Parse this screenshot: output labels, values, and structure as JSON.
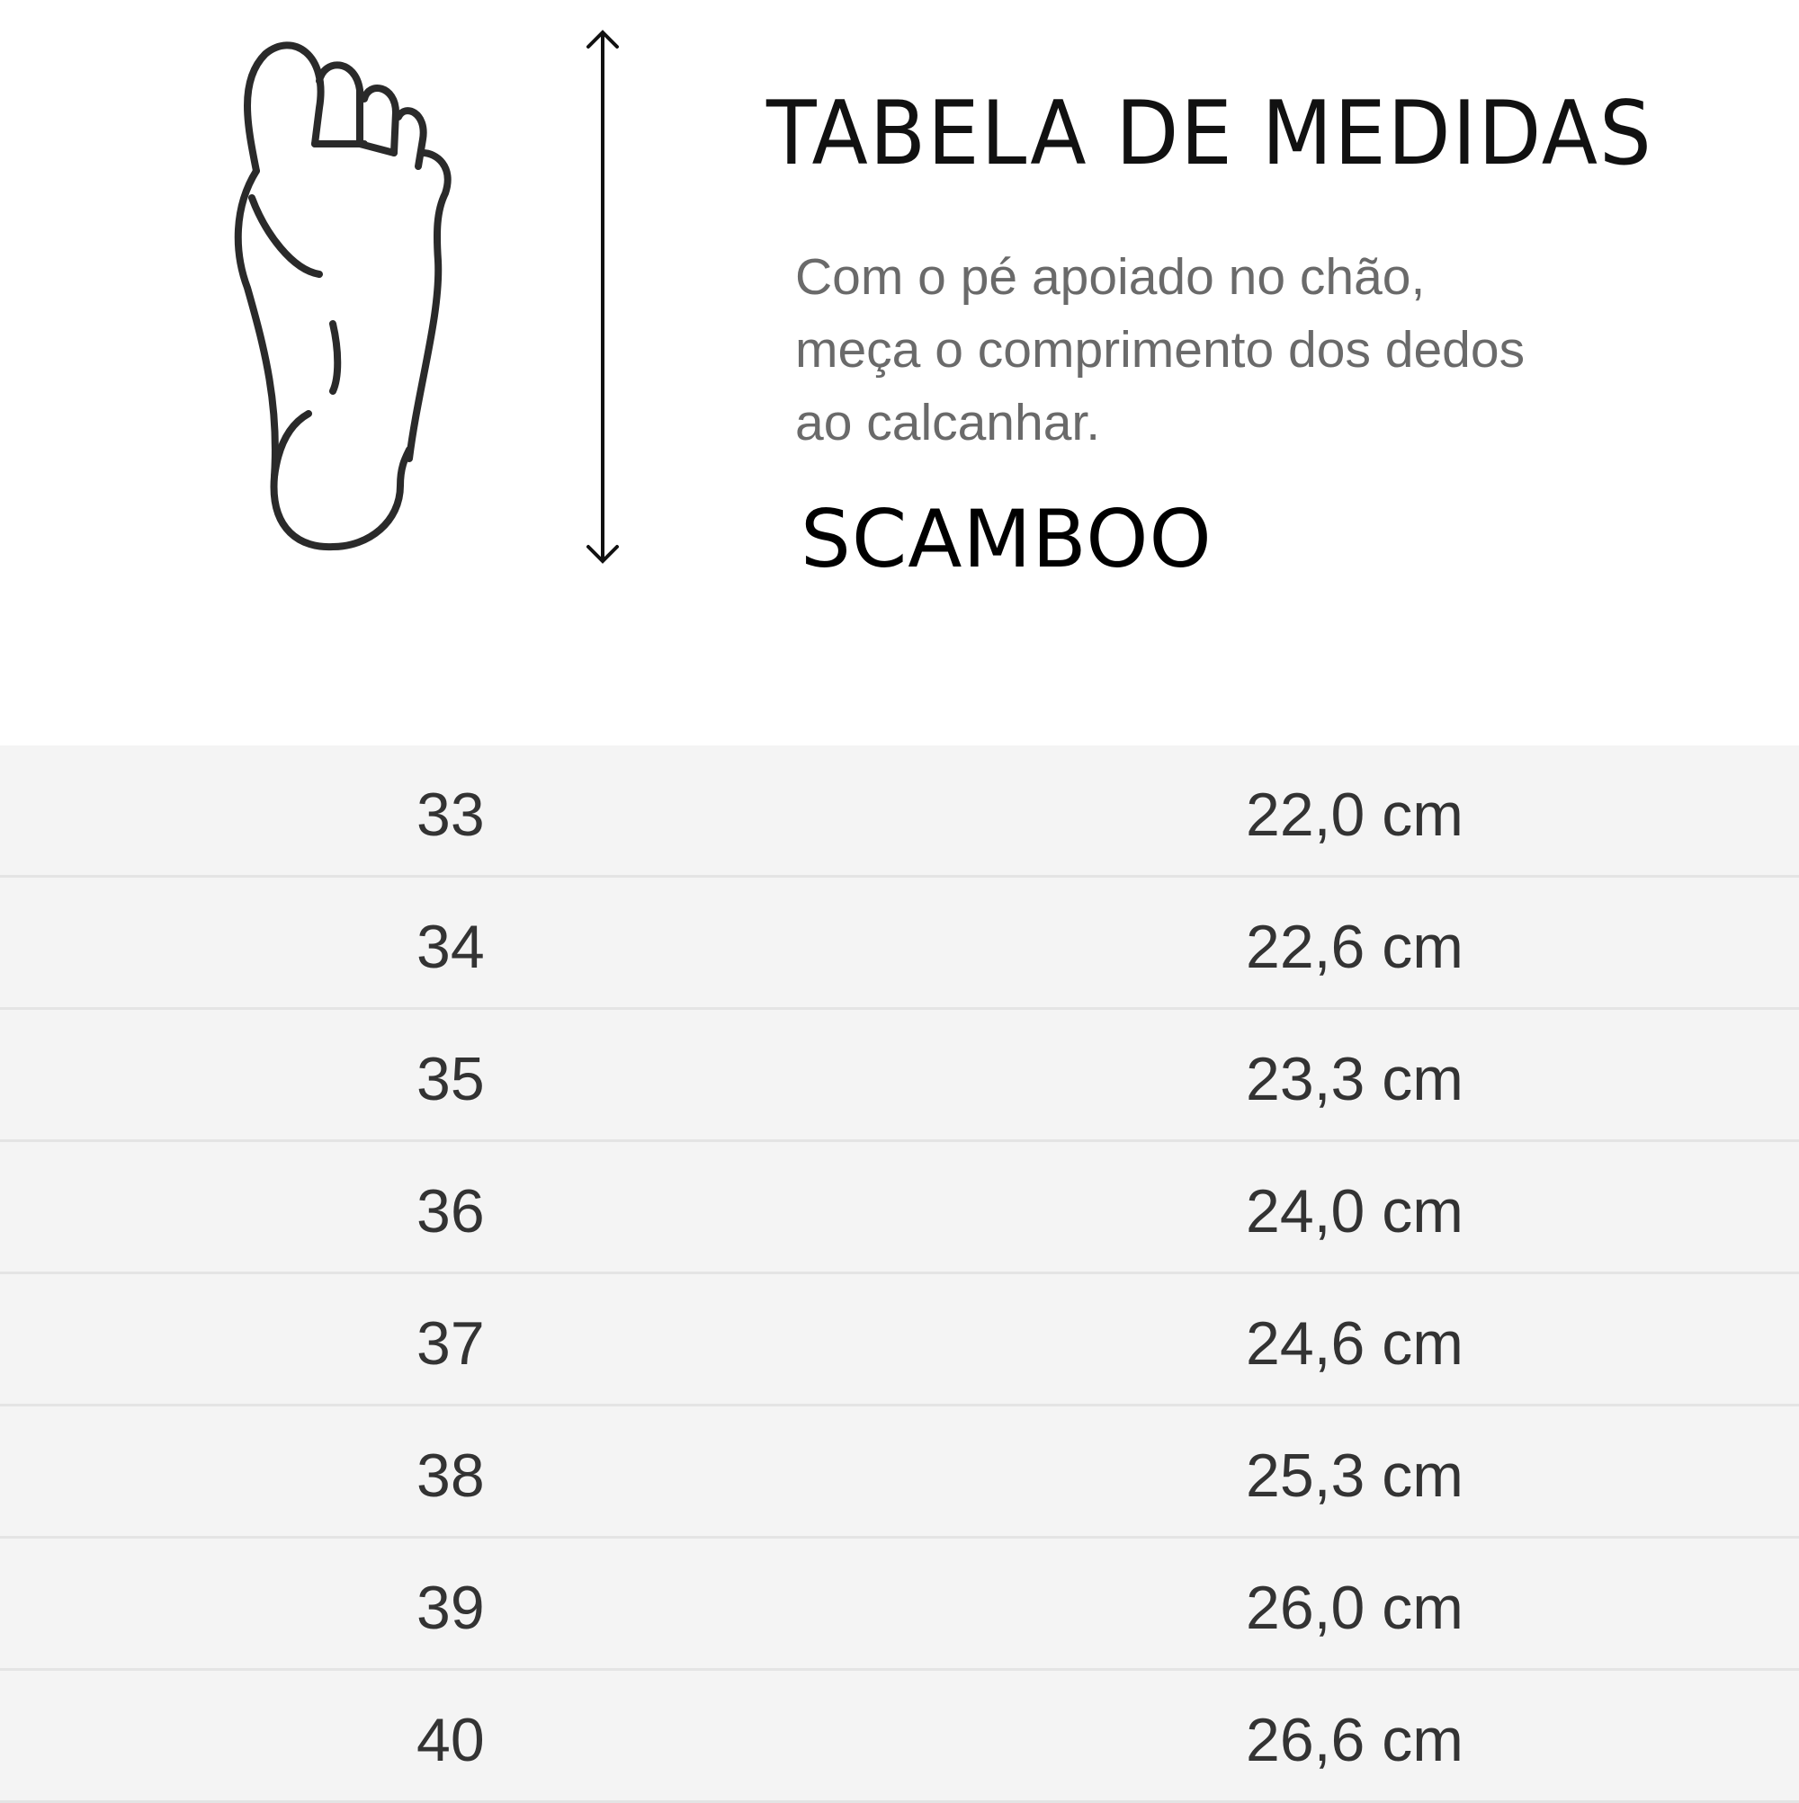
{
  "header": {
    "title": "TABELA DE MEDIDAS",
    "instruction_lines": [
      "Com o pé apoiado no chão,",
      "meça o comprimento dos dedos",
      "ao calcanhar."
    ],
    "brand": "SCAMBOO"
  },
  "icons": [
    "foot-outline-icon",
    "vertical-double-arrow-icon"
  ],
  "table": {
    "rows": [
      {
        "size": "33",
        "length": "22,0 cm"
      },
      {
        "size": "34",
        "length": "22,6 cm"
      },
      {
        "size": "35",
        "length": "23,3 cm"
      },
      {
        "size": "36",
        "length": "24,0 cm"
      },
      {
        "size": "37",
        "length": "24,6 cm"
      },
      {
        "size": "38",
        "length": "25,3 cm"
      },
      {
        "size": "39",
        "length": "26,0 cm"
      },
      {
        "size": "40",
        "length": "26,6 cm"
      }
    ]
  },
  "colors": {
    "row_bg": "#f4f4f4",
    "text": "#333333",
    "instruction": "#6a6a6a"
  }
}
